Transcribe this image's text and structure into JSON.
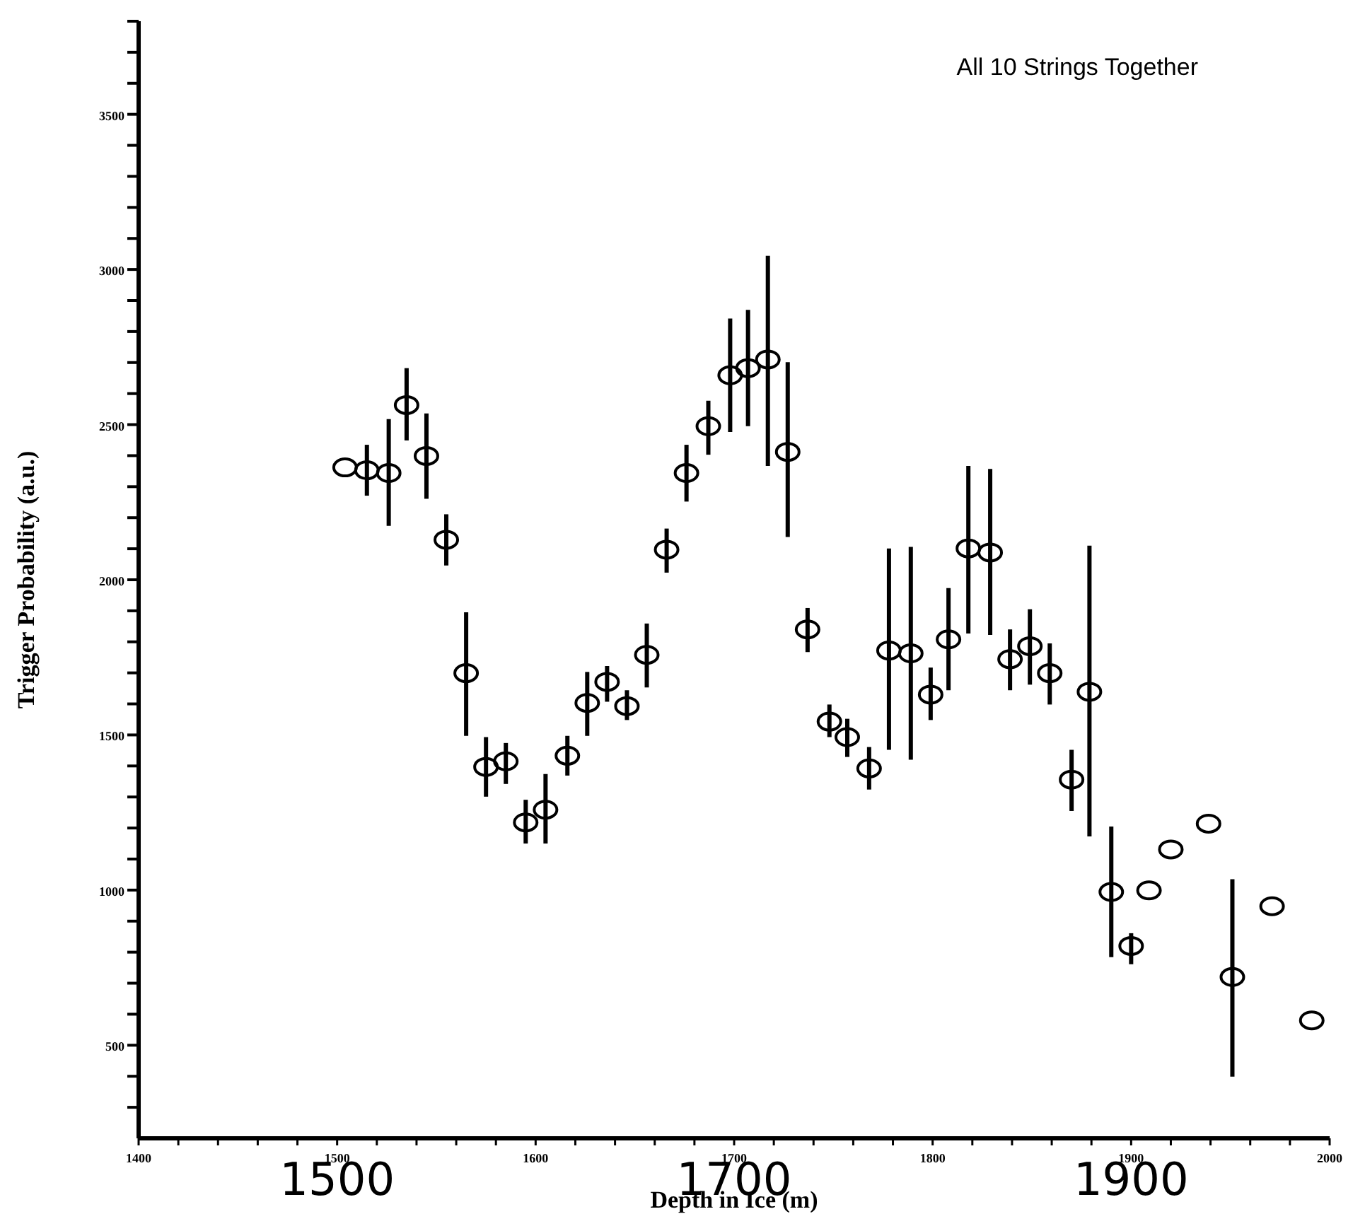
{
  "chart_data": {
    "type": "scatter",
    "title": "All 10 Strings Together",
    "xlabel": "Depth in Ice (m)",
    "ylabel": "Trigger Probability (a.u.)",
    "annotations": [
      "1500",
      "1700",
      "1900"
    ],
    "x": [
      1504,
      1515,
      1526,
      1535,
      1545,
      1555,
      1565,
      1575,
      1585,
      1595,
      1605,
      1616,
      1626,
      1636,
      1646,
      1656,
      1666,
      1676,
      1687,
      1698,
      1707,
      1717,
      1727,
      1737,
      1748,
      1757,
      1768,
      1778,
      1789,
      1799,
      1808,
      1818,
      1829,
      1839,
      1849,
      1859,
      1870,
      1879,
      1890,
      1900,
      1909,
      1920,
      1939,
      1951,
      1971,
      1991
    ],
    "values": [
      2362,
      2353,
      2344,
      2563,
      2399,
      2129,
      1699,
      1397,
      1415,
      1218,
      1259,
      1433,
      1603,
      1671,
      1593,
      1758,
      2097,
      2344,
      2495,
      2659,
      2682,
      2710,
      2412,
      1840,
      1543,
      1493,
      1392,
      1772,
      1763,
      1630,
      1808,
      2101,
      2088,
      1744,
      1786,
      1699,
      1356,
      1639,
      994,
      820,
      999,
      1131,
      1214,
      720,
      948,
      580
    ],
    "errors": [
      null,
      [
        2271,
        2435
      ],
      [
        2174,
        2518
      ],
      [
        2449,
        2682
      ],
      [
        2261,
        2536
      ],
      [
        2046,
        2211
      ],
      [
        1497,
        1895
      ],
      [
        1301,
        1493
      ],
      [
        1342,
        1474
      ],
      [
        1150,
        1291
      ],
      [
        1150,
        1374
      ],
      [
        1369,
        1497
      ],
      [
        1497,
        1703
      ],
      [
        1607,
        1722
      ],
      [
        1548,
        1644
      ],
      [
        1653,
        1859
      ],
      [
        2023,
        2165
      ],
      [
        2252,
        2435
      ],
      [
        2403,
        2577
      ],
      [
        2476,
        2842
      ],
      [
        2495,
        2870
      ],
      [
        2367,
        3044
      ],
      [
        2138,
        2701
      ],
      [
        1767,
        1909
      ],
      [
        1493,
        1598
      ],
      [
        1429,
        1552
      ],
      [
        1324,
        1461
      ],
      [
        1452,
        2101
      ],
      [
        1420,
        2106
      ],
      [
        1548,
        1717
      ],
      [
        1644,
        1973
      ],
      [
        1827,
        2367
      ],
      [
        1822,
        2357
      ],
      [
        1644,
        1840
      ],
      [
        1662,
        1905
      ],
      [
        1598,
        1795
      ],
      [
        1255,
        1452
      ],
      [
        1173,
        2110
      ],
      [
        784,
        1205
      ],
      [
        761,
        861
      ],
      null,
      null,
      null,
      [
        399,
        1035
      ],
      null,
      null
    ],
    "color": "#000000",
    "marker": "circle",
    "grid": false,
    "legend": false,
    "xlim": [
      1400,
      2000
    ],
    "xticks": [
      1400,
      {
        "value": 1420,
        "label": null
      },
      {
        "value": 1440,
        "label": null
      },
      {
        "value": 1460,
        "label": null
      },
      {
        "value": 1480,
        "label": null
      },
      1500,
      {
        "value": 1520,
        "label": null
      },
      {
        "value": 1540,
        "label": null
      },
      {
        "value": 1560,
        "label": null
      },
      {
        "value": 1580,
        "label": null
      },
      1600,
      {
        "value": 1620,
        "label": null
      },
      {
        "value": 1640,
        "label": null
      },
      {
        "value": 1660,
        "label": null
      },
      {
        "value": 1680,
        "label": null
      },
      1700,
      {
        "value": 1720,
        "label": null
      },
      {
        "value": 1740,
        "label": null
      },
      {
        "value": 1760,
        "label": null
      },
      {
        "value": 1780,
        "label": null
      },
      1800,
      {
        "value": 1820,
        "label": null
      },
      {
        "value": 1840,
        "label": null
      },
      {
        "value": 1860,
        "label": null
      },
      {
        "value": 1880,
        "label": null
      },
      1900,
      {
        "value": 1920,
        "label": null
      },
      {
        "value": 1940,
        "label": null
      },
      {
        "value": 1960,
        "label": null
      },
      {
        "value": 1980,
        "label": null
      },
      2000
    ],
    "ylim": [
      200,
      3800
    ],
    "yticks": [
      {
        "value": 300,
        "label": null
      },
      {
        "value": 400,
        "label": null
      },
      500,
      {
        "value": 600,
        "label": null
      },
      {
        "value": 700,
        "label": null
      },
      {
        "value": 800,
        "label": null
      },
      {
        "value": 900,
        "label": null
      },
      1000,
      {
        "value": 1100,
        "label": null
      },
      {
        "value": 1200,
        "label": null
      },
      {
        "value": 1300,
        "label": null
      },
      {
        "value": 1400,
        "label": null
      },
      1500,
      {
        "value": 1600,
        "label": null
      },
      {
        "value": 1700,
        "label": null
      },
      {
        "value": 1800,
        "label": null
      },
      {
        "value": 1900,
        "label": null
      },
      2000,
      {
        "value": 2100,
        "label": null
      },
      {
        "value": 2200,
        "label": null
      },
      {
        "value": 2300,
        "label": null
      },
      {
        "value": 2400,
        "label": null
      },
      2500,
      {
        "value": 2600,
        "label": null
      },
      {
        "value": 2700,
        "label": null
      },
      {
        "value": 2800,
        "label": null
      },
      {
        "value": 2900,
        "label": null
      },
      3000,
      {
        "value": 3100,
        "label": null
      },
      {
        "value": 3200,
        "label": null
      },
      {
        "value": 3300,
        "label": null
      },
      {
        "value": 3400,
        "label": null
      },
      3500,
      {
        "value": 3600,
        "label": null
      },
      {
        "value": 3700,
        "label": null
      },
      {
        "value": 3800,
        "label": null
      }
    ]
  }
}
